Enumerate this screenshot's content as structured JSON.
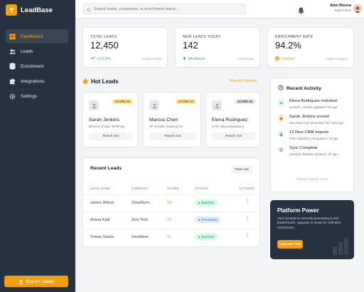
{
  "app": {
    "name": "LeadBase"
  },
  "sidebar": {
    "items": [
      {
        "label": "Dashboard",
        "icon": "dashboard-icon",
        "active": true
      },
      {
        "label": "Leads",
        "icon": "users-icon"
      },
      {
        "label": "Enrichment",
        "icon": "database-icon"
      },
      {
        "label": "Integrations",
        "icon": "puzzle-icon"
      },
      {
        "label": "Settings",
        "icon": "gear-icon"
      }
    ],
    "export_label": "Export Leads"
  },
  "topbar": {
    "search_placeholder": "Search leads, companies, or enrichment status...",
    "user": {
      "name": "Alex Rivera",
      "role": "Data Admin"
    }
  },
  "stats": [
    {
      "title": "TOTAL LEADS",
      "value": "12,450",
      "change": "+12.5%",
      "note": "vs last month"
    },
    {
      "title": "NEW LEADS TODAY",
      "value": "142",
      "change": "8% Boost",
      "note": "Active Now"
    },
    {
      "title": "ENRICHMENT RATE",
      "value": "94.2%",
      "change": "Verified",
      "note": "High Accuracy"
    }
  ],
  "hot_leads": {
    "title": "Hot Leads",
    "view_all": "View All Pipeline",
    "items": [
      {
        "name": "Sarah Jenkins",
        "role": "Director of Ops, TechFlow",
        "score": "SCORE 95",
        "action": "Reach Out"
      },
      {
        "name": "Marcus Chen",
        "role": "VP Growth, ScaleUp Inc",
        "score": "SCORE 93",
        "action": "Reach Out"
      },
      {
        "name": "Elena Rodriguez",
        "role": "CTO, Nexus Dynamics",
        "score": "SCORE 90",
        "action": "Reach Out"
      }
    ]
  },
  "recent_leads": {
    "title": "Recent Leads",
    "filter": "Filter List",
    "columns": [
      "LEAD NAME",
      "COMPANY",
      "SCORE",
      "STATUS",
      "ACTIONS"
    ],
    "rows": [
      {
        "name": "James Wilson",
        "company": "CloudSync",
        "score": "88",
        "status": "Enriched"
      },
      {
        "name": "Amina Kadi",
        "company": "Zion Tech",
        "score": "74",
        "status": "Processing"
      },
      {
        "name": "Tomas Garcia",
        "company": "InnoWave",
        "score": "91",
        "status": "Enriched"
      }
    ]
  },
  "activity": {
    "title": "Recent Activity",
    "items": [
      {
        "title": "Elena Rodriguez enriched",
        "sub": "LinkedIn, Clearbit Updated • 2m ago"
      },
      {
        "title": "Sarah Jenkins scored",
        "sub": "New lead score generated: 95 • 15m ago"
      },
      {
        "title": "12 New CRM Imports",
        "sub": "From Salesforce Integration • 1h ago"
      },
      {
        "title": "Sync Complete",
        "sub": "HubSpot database updated • 3h ago"
      }
    ],
    "view_log": "VIEW AUDIT LOG"
  },
  "power": {
    "title": "Platform Power",
    "text": "Your account is currently processing 5,200 leads/month. Upgrade to Scale for unlimited enrichment.",
    "button": "Upgrade Plan"
  },
  "colors": {
    "accent": "#f59e0b",
    "sidebar": "#273241",
    "success": "#10b981",
    "info": "#2563eb"
  }
}
